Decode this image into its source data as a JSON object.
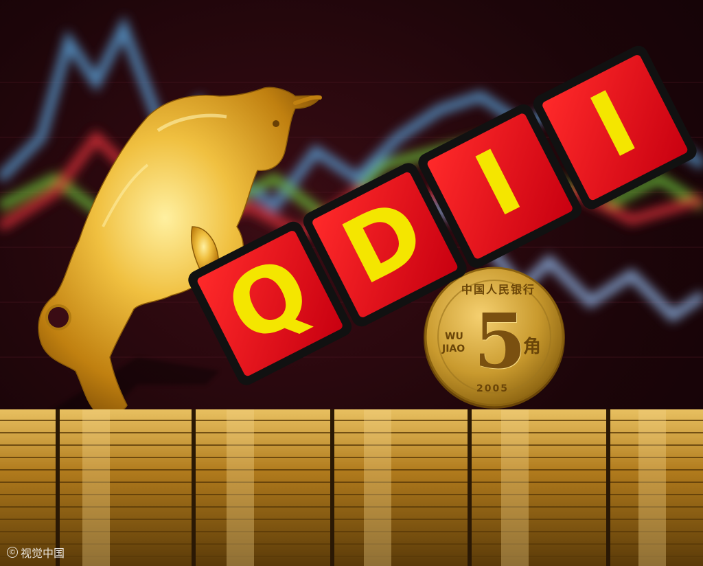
{
  "tiles": [
    "Q",
    "D",
    "I",
    "I"
  ],
  "coin": {
    "denomination": "5",
    "unit_char": "角",
    "latin_top": "WU",
    "latin_bottom": "JIAO",
    "year": "2005",
    "rim_text": "中国人民银行"
  },
  "watermark": "视觉中国",
  "colors": {
    "tile_red": "#e8101a",
    "letter_yellow": "#f4e600",
    "gold": "#d9a21e",
    "coin_gold": "#c99a2e"
  },
  "icons": [
    "bull-figurine",
    "coin-stack",
    "copyright-icon"
  ]
}
